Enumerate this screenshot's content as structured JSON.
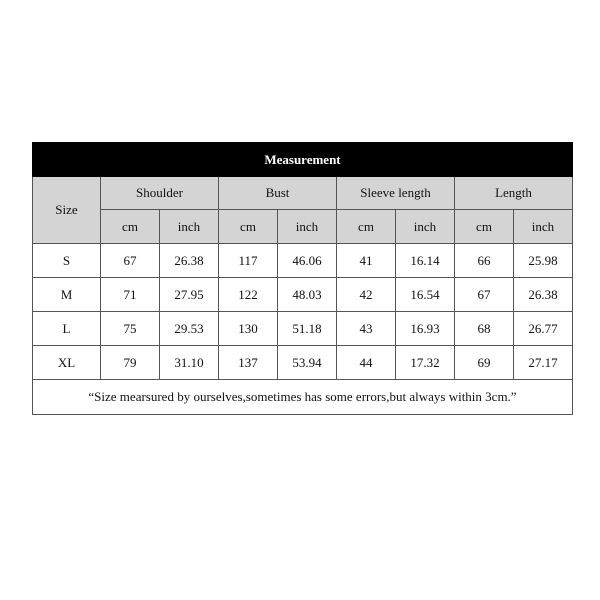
{
  "table": {
    "title": "Measurement",
    "size_header": "Size",
    "groups": [
      "Shoulder",
      "Bust",
      "Sleeve length",
      "Length"
    ],
    "units": [
      "cm",
      "inch",
      "cm",
      "inch",
      "cm",
      "inch",
      "cm",
      "inch"
    ],
    "rows": [
      [
        "S",
        "67",
        "26.38",
        "117",
        "46.06",
        "41",
        "16.14",
        "66",
        "25.98"
      ],
      [
        "M",
        "71",
        "27.95",
        "122",
        "48.03",
        "42",
        "16.54",
        "67",
        "26.38"
      ],
      [
        "L",
        "75",
        "29.53",
        "130",
        "51.18",
        "43",
        "16.93",
        "68",
        "26.77"
      ],
      [
        "XL",
        "79",
        "31.10",
        "137",
        "53.94",
        "44",
        "17.32",
        "69",
        "27.17"
      ]
    ],
    "note": "“Size mearsured by ourselves,sometimes has some errors,but always within 3cm.”"
  }
}
